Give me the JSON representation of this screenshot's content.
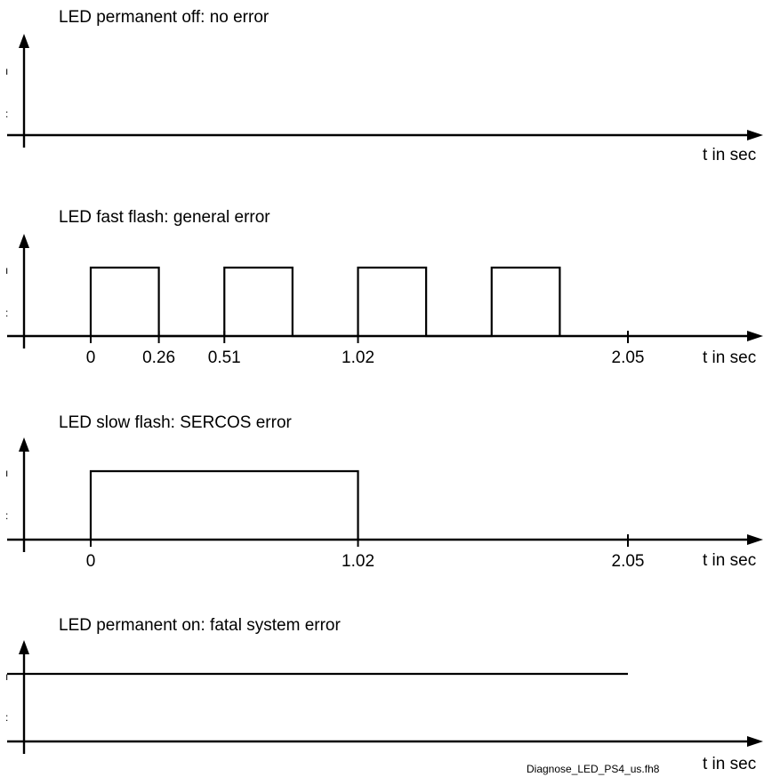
{
  "diagrams": [
    {
      "title": "LED permanent off: no error",
      "xlabel": "t in sec",
      "y_high_label": "ı",
      "y_low_label": ":",
      "ticks": [],
      "signal": {
        "mode": "off"
      }
    },
    {
      "title": "LED fast flash: general error",
      "xlabel": "t in sec",
      "y_high_label": "ı",
      "y_low_label": ":",
      "ticks": [
        {
          "t": 0,
          "label": "0"
        },
        {
          "t": 0.26,
          "label": "0.26"
        },
        {
          "t": 0.51,
          "label": "0.51"
        },
        {
          "t": 1.02,
          "label": "1.02"
        },
        {
          "t": 2.05,
          "label": "2.05"
        }
      ],
      "signal": {
        "mode": "pulses",
        "on_intervals": [
          [
            0,
            0.26
          ],
          [
            0.51,
            0.77
          ],
          [
            1.02,
            1.28
          ],
          [
            1.53,
            1.79
          ]
        ]
      }
    },
    {
      "title": "LED slow flash: SERCOS error",
      "xlabel": "t in sec",
      "y_high_label": "ı",
      "y_low_label": ":",
      "ticks": [
        {
          "t": 0,
          "label": "0"
        },
        {
          "t": 1.02,
          "label": "1.02"
        },
        {
          "t": 2.05,
          "label": "2.05"
        }
      ],
      "signal": {
        "mode": "pulses",
        "on_intervals": [
          [
            0,
            1.02
          ]
        ]
      }
    },
    {
      "title": "LED permanent on: fatal system error",
      "xlabel": "t in sec",
      "y_high_label": "ı",
      "y_low_label": ":",
      "ticks": [],
      "signal": {
        "mode": "on",
        "end_t": 2.05
      }
    }
  ],
  "footnote": "Diagnose_LED_PS4_us.fh8"
}
